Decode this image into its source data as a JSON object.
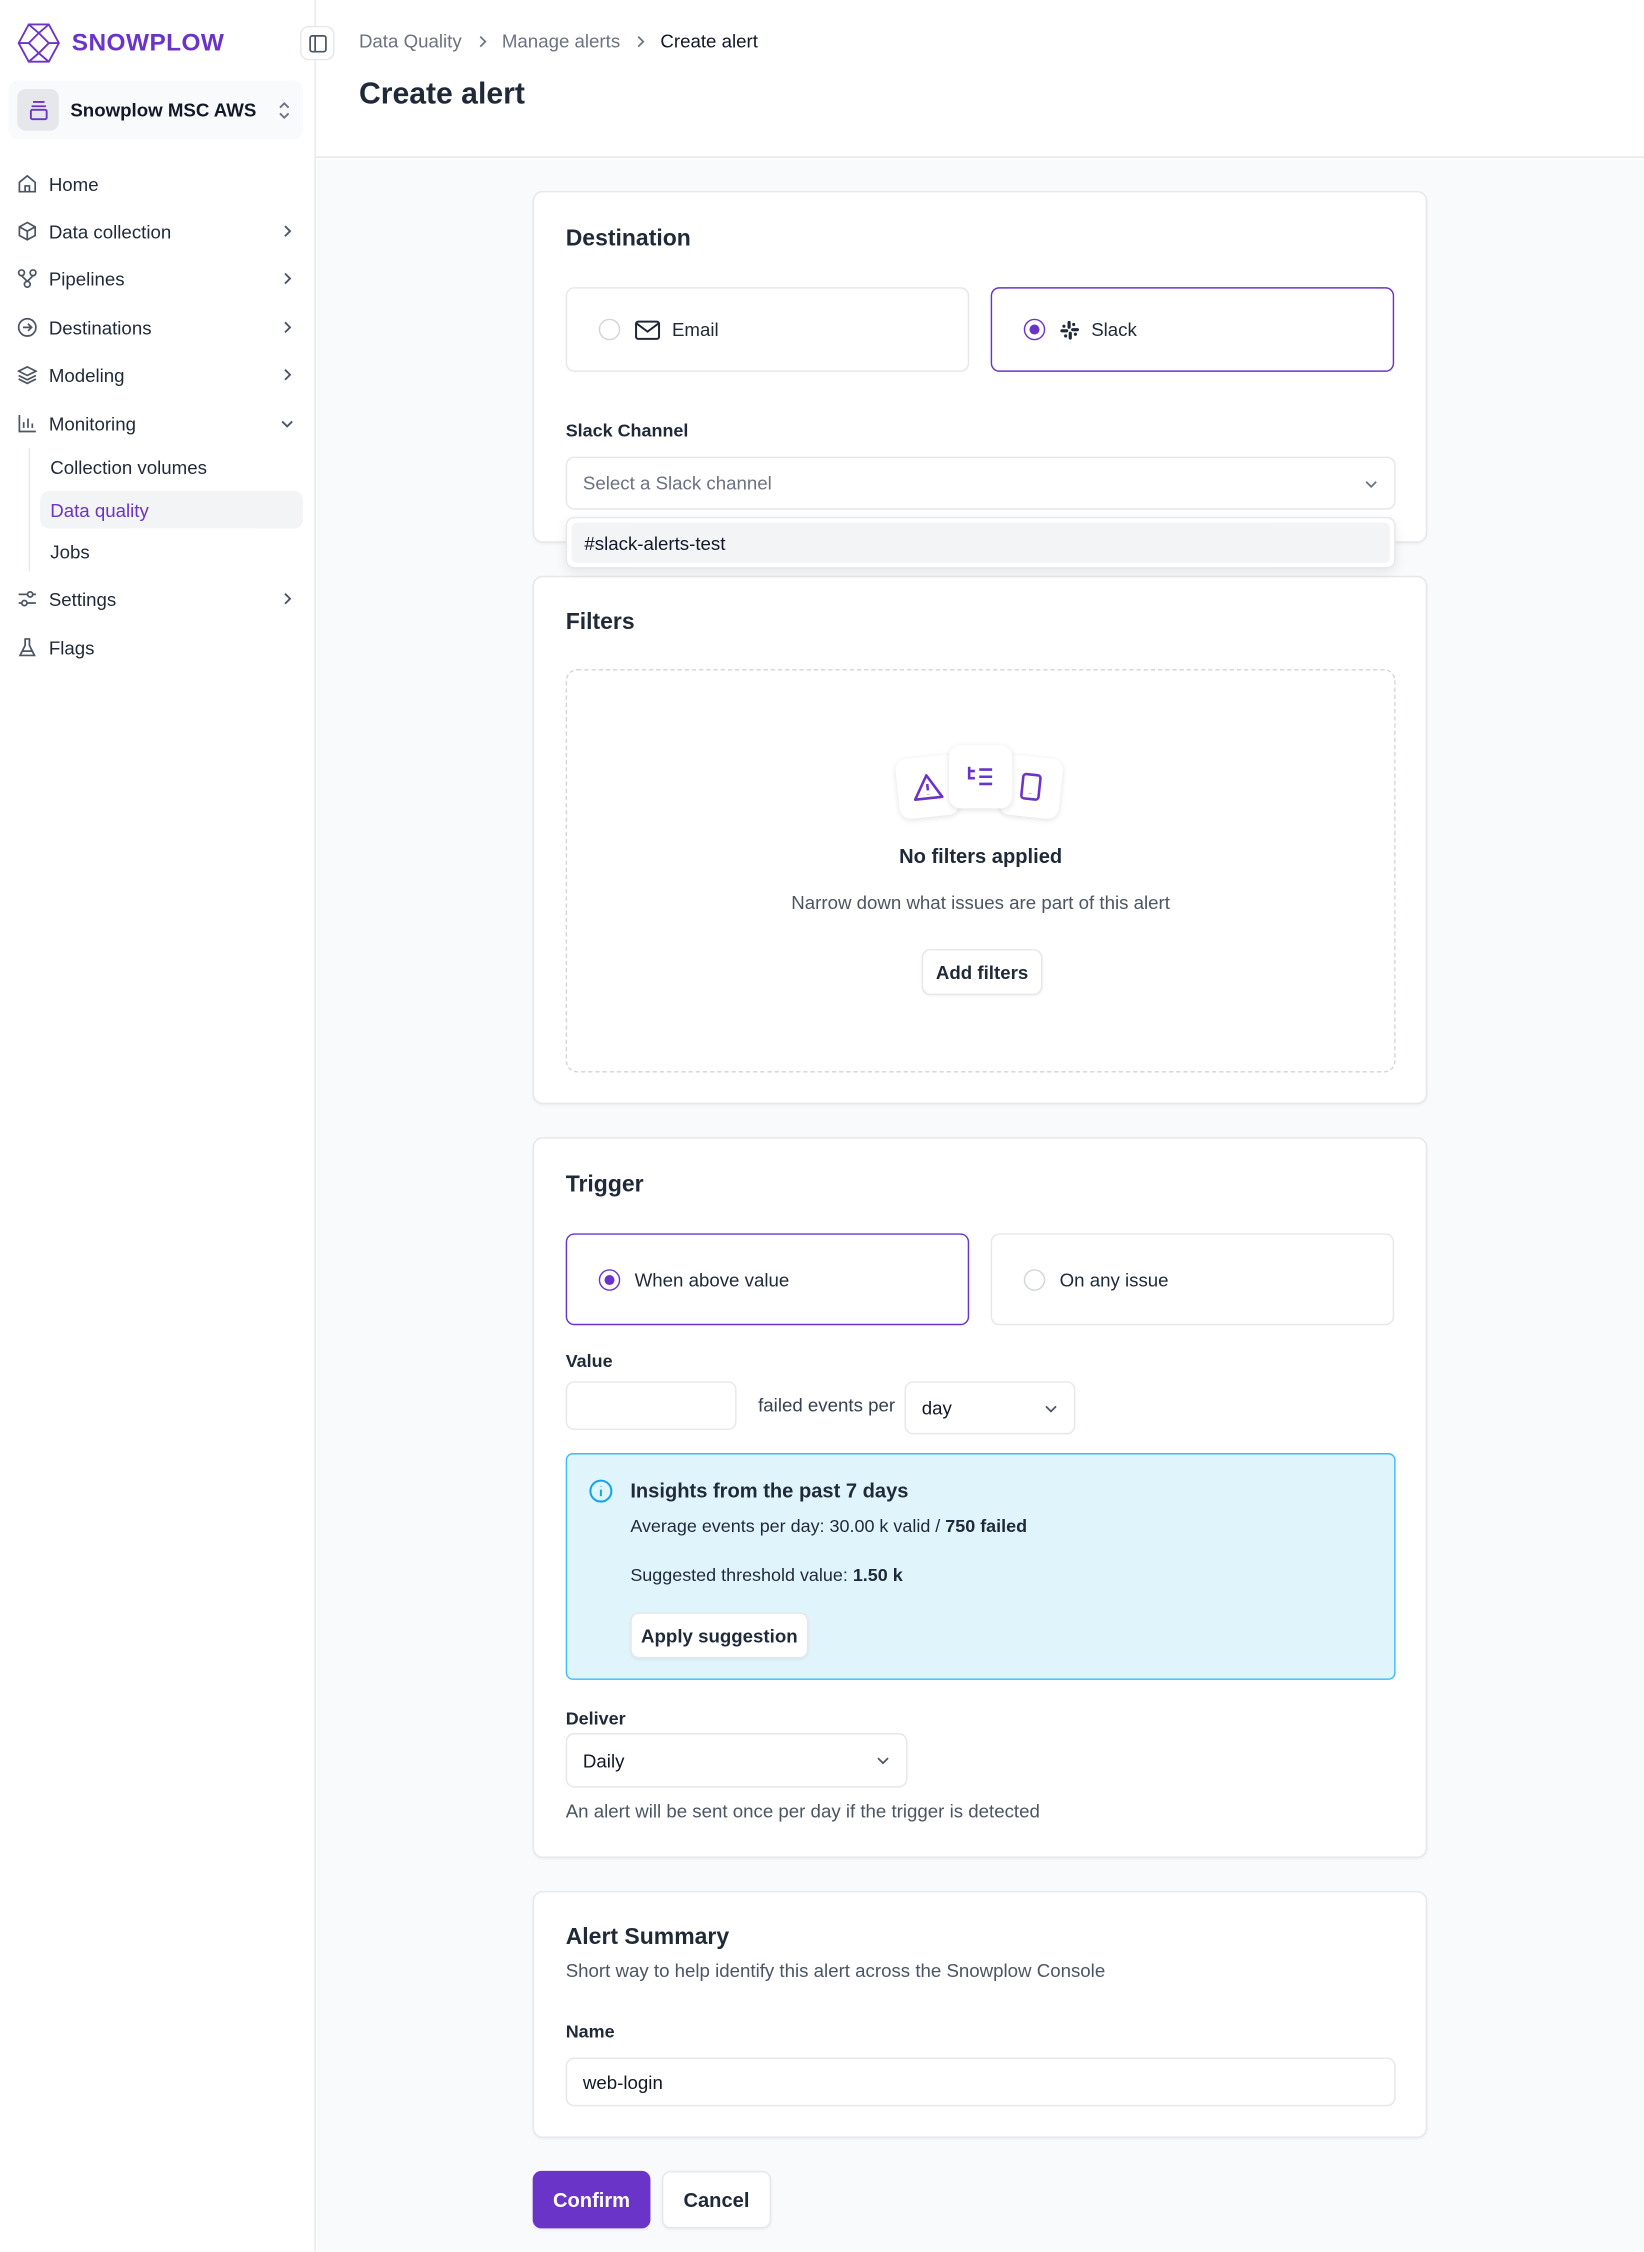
{
  "brand": {
    "name": "SNOWPLOW",
    "color": "#6b34c9"
  },
  "org": {
    "name": "Snowplow MSC AWS"
  },
  "sidebar": {
    "items": [
      {
        "label": "Home",
        "icon": "home-icon"
      },
      {
        "label": "Data collection",
        "icon": "cube-icon"
      },
      {
        "label": "Pipelines",
        "icon": "pipeline-icon"
      },
      {
        "label": "Destinations",
        "icon": "arrow-circle-icon"
      },
      {
        "label": "Modeling",
        "icon": "layers-icon"
      },
      {
        "label": "Monitoring",
        "icon": "bar-chart-icon",
        "expanded": true,
        "children": [
          {
            "label": "Collection volumes"
          },
          {
            "label": "Data quality",
            "active": true
          },
          {
            "label": "Jobs"
          }
        ]
      },
      {
        "label": "Settings",
        "icon": "sliders-icon"
      },
      {
        "label": "Flags",
        "icon": "flask-icon"
      }
    ]
  },
  "header": {
    "breadcrumb": [
      "Data Quality",
      "Manage alerts",
      "Create alert"
    ],
    "title": "Create alert"
  },
  "destination": {
    "title": "Destination",
    "options": [
      {
        "label": "Email",
        "selected": false
      },
      {
        "label": "Slack",
        "selected": true
      }
    ],
    "channel_label": "Slack Channel",
    "channel_placeholder": "Select a Slack channel",
    "dropdown_options": [
      "#slack-alerts-test"
    ]
  },
  "filters": {
    "title": "Filters",
    "empty_title": "No filters applied",
    "empty_text": "Narrow down what issues are part of this alert",
    "add_button": "Add filters"
  },
  "trigger": {
    "title": "Trigger",
    "options": [
      {
        "label": "When above value",
        "selected": true
      },
      {
        "label": "On any issue",
        "selected": false
      }
    ],
    "value_label": "Value",
    "value": "",
    "per_text": "failed events per",
    "period": "day",
    "insights": {
      "title": "Insights from the past 7 days",
      "avg_prefix": "Average events per day: 30.00 k valid / ",
      "avg_failed": "750 failed",
      "suggest_prefix": "Suggested threshold value: ",
      "suggest_value": "1.50 k",
      "apply_button": "Apply suggestion"
    },
    "deliver_label": "Deliver",
    "deliver": "Daily",
    "deliver_help": "An alert will be sent once per day if the trigger is detected"
  },
  "summary": {
    "title": "Alert Summary",
    "subtitle": "Short way to help identify this alert across the Snowplow Console",
    "name_label": "Name",
    "name_value": "web-login"
  },
  "actions": {
    "confirm": "Confirm",
    "cancel": "Cancel"
  }
}
